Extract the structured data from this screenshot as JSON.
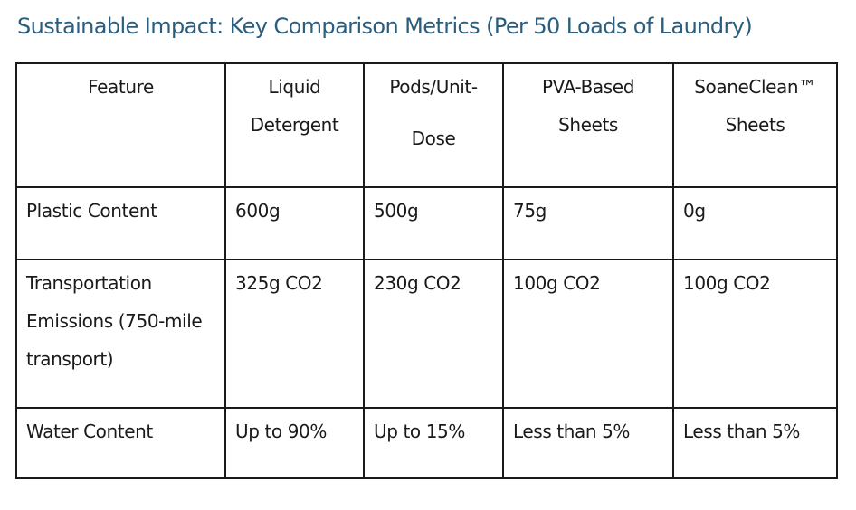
{
  "title": "Sustainable Impact: Key Comparison Metrics (Per 50 Loads of Laundry)",
  "table": {
    "headers": [
      "Feature",
      "Liquid Detergent",
      "Pods/Unit-Dose",
      "PVA-Based Sheets",
      "SoaneClean™ Sheets"
    ],
    "header_pods_parts": [
      "Pods/Unit-",
      "Dose"
    ],
    "rows": [
      [
        "Plastic Content",
        "600g",
        "500g",
        "75g",
        "0g"
      ],
      [
        "Transportation Emissions (750-mile transport)",
        "325g CO2",
        "230g CO2",
        "100g CO2",
        "100g CO2"
      ],
      [
        "Water Content",
        "Up to 90%",
        "Up to 15%",
        "Less than 5%",
        "Less than 5%"
      ]
    ]
  }
}
